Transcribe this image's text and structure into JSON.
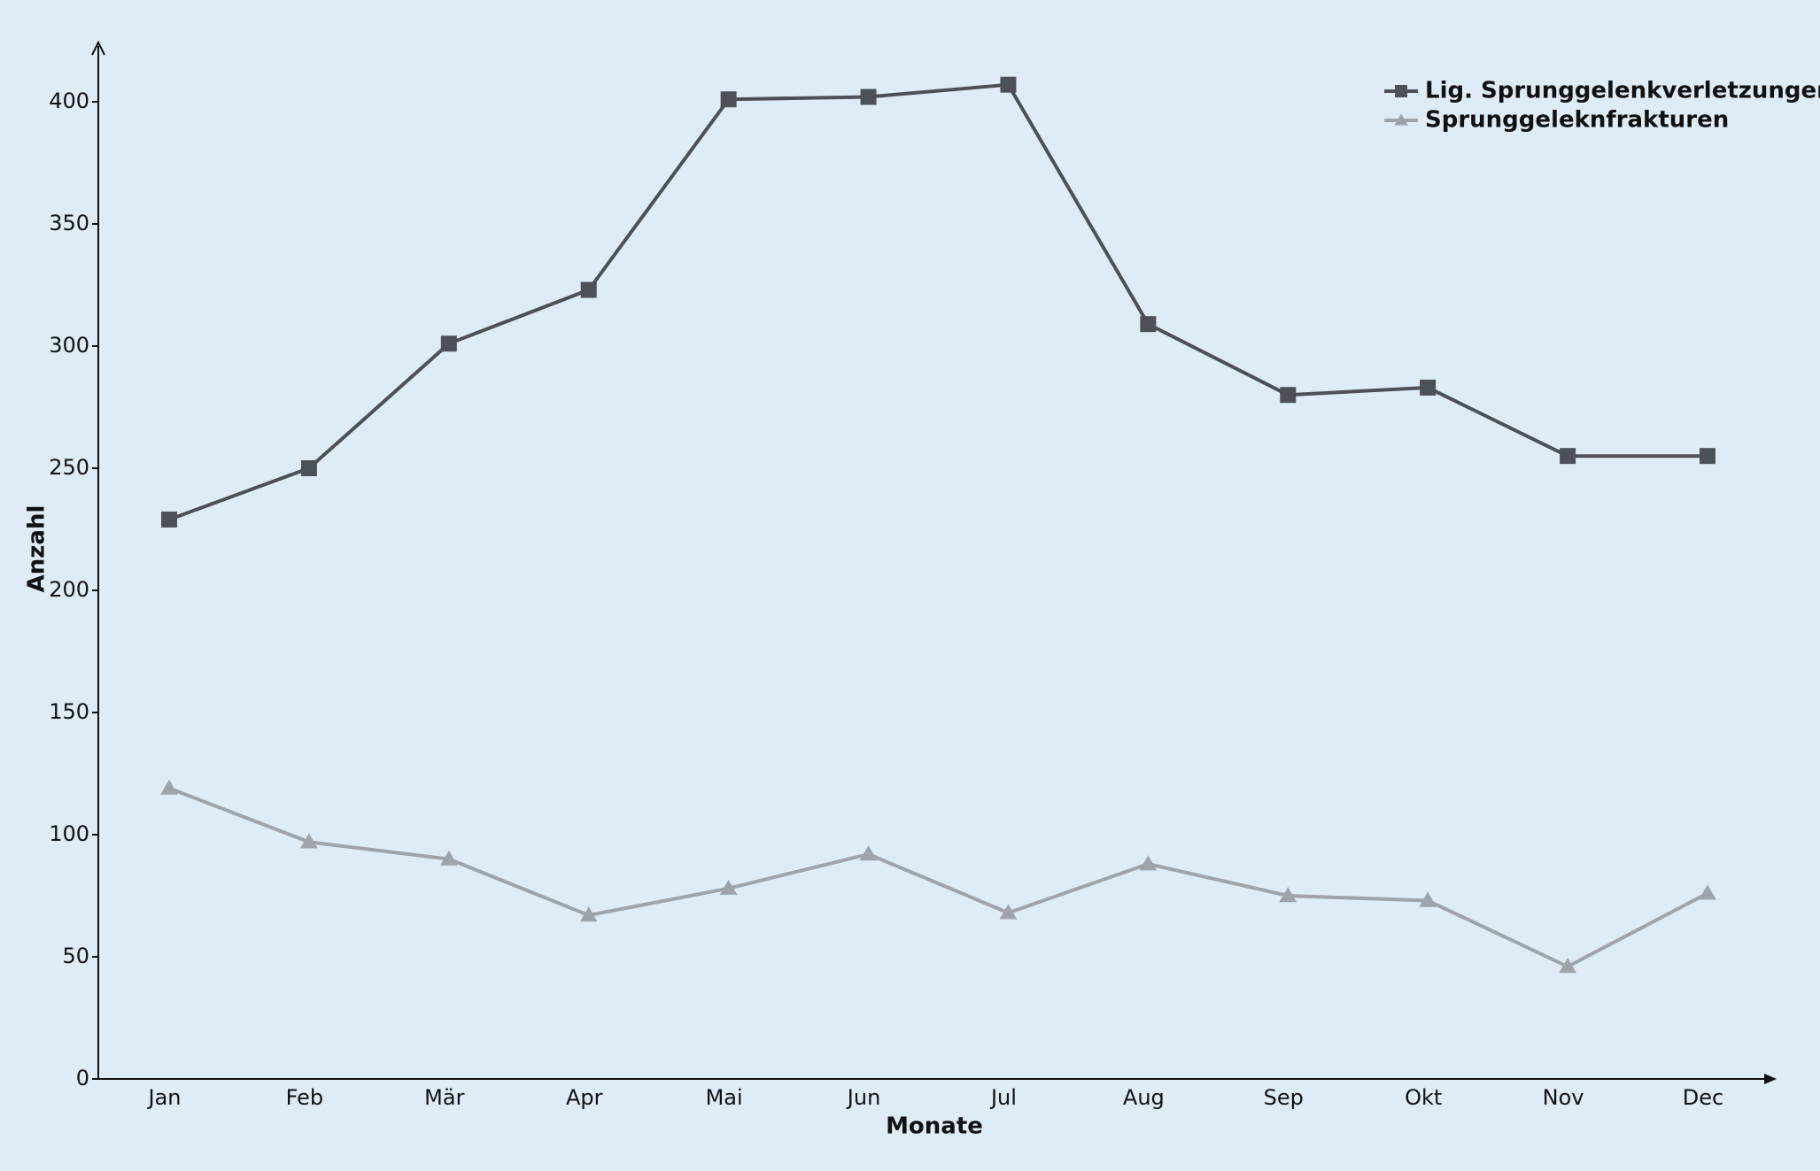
{
  "chart_data": {
    "type": "line",
    "xlabel": "Monate",
    "ylabel": "Anzahl",
    "categories": [
      "Jan",
      "Feb",
      "Mär",
      "Apr",
      "Mai",
      "Jun",
      "Jul",
      "Aug",
      "Sep",
      "Okt",
      "Nov",
      "Dec"
    ],
    "series": [
      {
        "name": "Lig. Sprunggelenkverletzungen",
        "color": "#4d5157",
        "marker": "square",
        "values": [
          229,
          250,
          301,
          323,
          401,
          402,
          407,
          309,
          280,
          283,
          255,
          255
        ]
      },
      {
        "name": "Sprunggeleknfrakturen",
        "color": "#9ea4aa",
        "marker": "triangle",
        "values": [
          119,
          97,
          90,
          67,
          78,
          92,
          68,
          88,
          75,
          73,
          46,
          76
        ]
      }
    ],
    "ylim": [
      0,
      400
    ],
    "yticks": [
      0,
      50,
      100,
      150,
      200,
      250,
      300,
      350,
      400
    ],
    "grid": false,
    "legend": "upper right"
  }
}
